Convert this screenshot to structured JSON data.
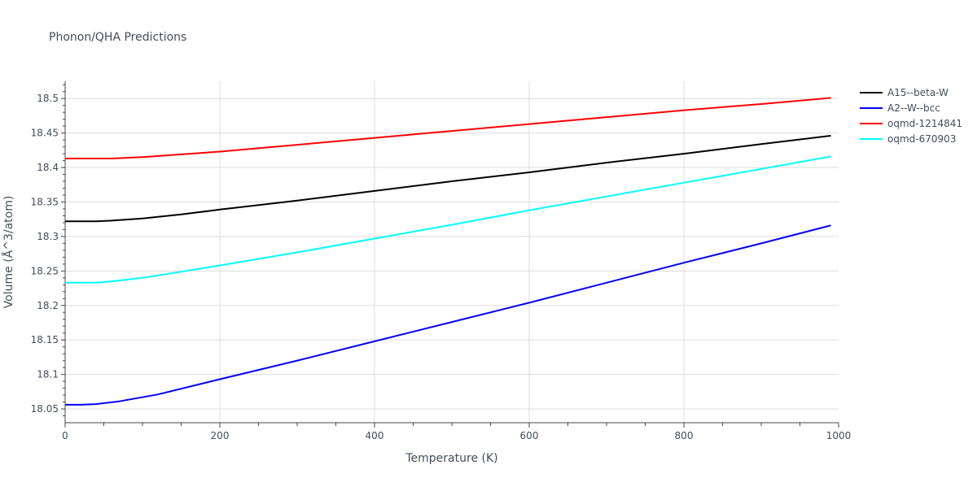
{
  "chart_data": {
    "type": "line",
    "title": "Phonon/QHA Predictions",
    "xlabel": "Temperature (K)",
    "ylabel": "Volume (Å^3/atom)",
    "xlim": [
      0,
      1000
    ],
    "ylim": [
      18.03,
      18.525
    ],
    "x_ticks": [
      "0",
      "200",
      "400",
      "600",
      "800",
      "1000"
    ],
    "y_ticks": [
      "18.05",
      "18.1",
      "18.15",
      "18.2",
      "18.25",
      "18.3",
      "18.35",
      "18.4",
      "18.45",
      "18.5"
    ],
    "grid": true,
    "legend_position": "right",
    "series": [
      {
        "name": "A15--beta-W",
        "color": "#000000",
        "x": [
          0,
          20,
          40,
          60,
          100,
          150,
          200,
          300,
          400,
          500,
          600,
          700,
          800,
          900,
          990
        ],
        "values": [
          18.322,
          18.322,
          18.322,
          18.323,
          18.326,
          18.332,
          18.339,
          18.352,
          18.366,
          18.38,
          18.393,
          18.407,
          18.42,
          18.434,
          18.446
        ]
      },
      {
        "name": "A2--W--bcc",
        "color": "#0000ff",
        "x": [
          0,
          20,
          40,
          70,
          120,
          200,
          300,
          400,
          500,
          600,
          700,
          800,
          900,
          990
        ],
        "values": [
          18.056,
          18.056,
          18.057,
          18.061,
          18.071,
          18.093,
          18.12,
          18.148,
          18.176,
          18.204,
          18.233,
          18.262,
          18.29,
          18.316
        ]
      },
      {
        "name": "oqmd-1214841",
        "color": "#ff0000",
        "x": [
          0,
          20,
          40,
          60,
          100,
          150,
          200,
          300,
          400,
          500,
          600,
          700,
          800,
          900,
          990
        ],
        "values": [
          18.413,
          18.413,
          18.413,
          18.413,
          18.415,
          18.419,
          18.423,
          18.433,
          18.443,
          18.453,
          18.463,
          18.473,
          18.483,
          18.492,
          18.501
        ]
      },
      {
        "name": "oqmd-670903",
        "color": "#00ffff",
        "x": [
          0,
          20,
          40,
          60,
          100,
          150,
          200,
          300,
          400,
          500,
          600,
          700,
          800,
          900,
          990
        ],
        "values": [
          18.233,
          18.233,
          18.233,
          18.235,
          18.24,
          18.249,
          18.258,
          18.277,
          18.297,
          18.317,
          18.338,
          18.358,
          18.378,
          18.398,
          18.416
        ]
      }
    ]
  }
}
